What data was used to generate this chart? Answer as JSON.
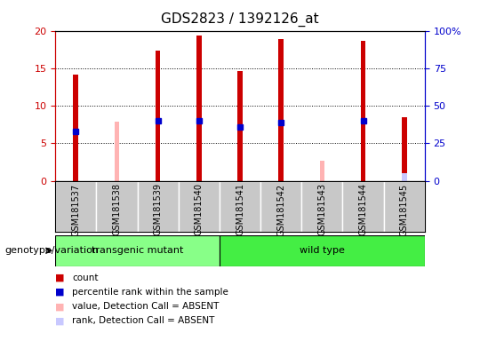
{
  "title": "GDS2823 / 1392126_at",
  "samples": [
    "GSM181537",
    "GSM181538",
    "GSM181539",
    "GSM181540",
    "GSM181541",
    "GSM181542",
    "GSM181543",
    "GSM181544",
    "GSM181545"
  ],
  "count_values": [
    14.1,
    null,
    17.3,
    19.4,
    14.6,
    18.9,
    null,
    18.6,
    8.5
  ],
  "rank_values": [
    6.6,
    null,
    8.0,
    8.0,
    7.2,
    7.7,
    null,
    8.0,
    null
  ],
  "absent_value": [
    null,
    7.9,
    null,
    null,
    null,
    null,
    2.7,
    null,
    null
  ],
  "absent_rank": [
    null,
    null,
    null,
    null,
    null,
    null,
    null,
    null,
    5.1
  ],
  "ylim": [
    0,
    20
  ],
  "yticks": [
    0,
    5,
    10,
    15,
    20
  ],
  "y2ticks": [
    0,
    25,
    50,
    75,
    100
  ],
  "bar_width": 0.12,
  "color_count": "#cc0000",
  "color_rank": "#0000cc",
  "color_absent_value": "#ffb3b3",
  "color_absent_rank": "#c8c8ff",
  "color_transgenic": "#88ff88",
  "color_wildtype": "#44ee44",
  "color_axis_left": "#cc0000",
  "color_axis_right": "#0000cc",
  "color_label_bg": "#c8c8c8",
  "legend_items": [
    {
      "label": "count",
      "color": "#cc0000"
    },
    {
      "label": "percentile rank within the sample",
      "color": "#0000cc"
    },
    {
      "label": "value, Detection Call = ABSENT",
      "color": "#ffb3b3"
    },
    {
      "label": "rank, Detection Call = ABSENT",
      "color": "#c8c8ff"
    }
  ]
}
